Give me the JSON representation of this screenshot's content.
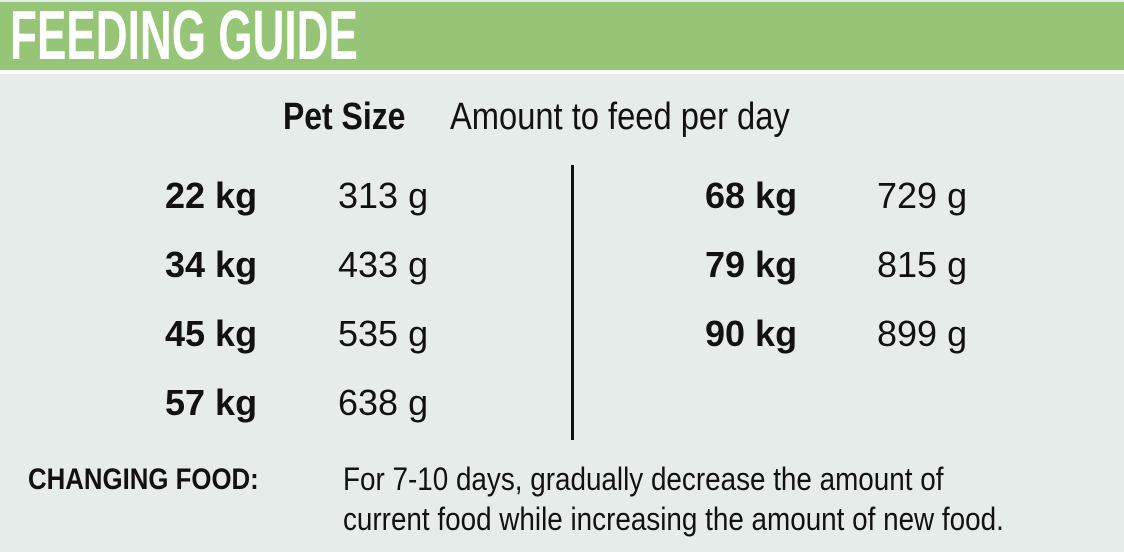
{
  "header": {
    "title": "FEEDING GUIDE"
  },
  "table": {
    "col_size": "Pet Size",
    "col_amount": "Amount to feed per day",
    "left": [
      {
        "size": "22 kg",
        "amount": "313 g"
      },
      {
        "size": "34 kg",
        "amount": "433 g"
      },
      {
        "size": "45 kg",
        "amount": "535 g"
      },
      {
        "size": "57 kg",
        "amount": "638 g"
      }
    ],
    "right": [
      {
        "size": "68 kg",
        "amount": "729 g"
      },
      {
        "size": "79 kg",
        "amount": "815 g"
      },
      {
        "size": "90 kg",
        "amount": "899 g"
      }
    ]
  },
  "note": {
    "label": "CHANGING FOOD:",
    "line1": "For 7-10 days, gradually decrease the amount of",
    "line2": "current food while increasing the amount of new food."
  },
  "colors": {
    "header": "#97c577",
    "background": "#e6ecea"
  }
}
